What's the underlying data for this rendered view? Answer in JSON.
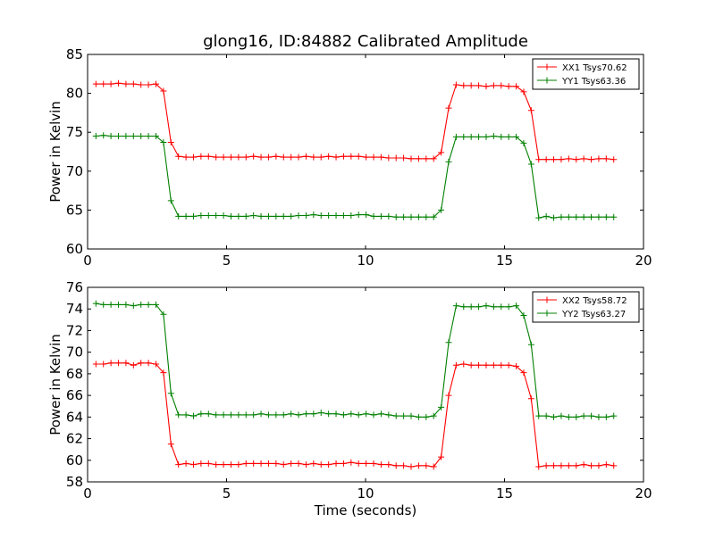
{
  "figure": {
    "title": "glong16, ID:84882 Calibrated Amplitude"
  },
  "chart_data": [
    {
      "type": "line",
      "title": "glong16, ID:84882 Calibrated Amplitude",
      "xlabel": "",
      "ylabel": "Power in Kelvin",
      "xlim": [
        0,
        20
      ],
      "ylim": [
        60,
        85
      ],
      "xticks": [
        0,
        5,
        10,
        15,
        20
      ],
      "yticks": [
        60,
        65,
        70,
        75,
        80,
        85
      ],
      "grid": false,
      "legend_position": "top-right",
      "x": [
        0.3,
        0.57,
        0.84,
        1.11,
        1.38,
        1.65,
        1.92,
        2.19,
        2.46,
        2.73,
        3.0,
        3.27,
        3.54,
        3.81,
        4.08,
        4.35,
        4.62,
        4.89,
        5.16,
        5.43,
        5.7,
        5.97,
        6.24,
        6.51,
        6.78,
        7.05,
        7.32,
        7.59,
        7.86,
        8.13,
        8.4,
        8.67,
        8.94,
        9.21,
        9.48,
        9.75,
        10.02,
        10.29,
        10.56,
        10.83,
        11.1,
        11.37,
        11.64,
        11.91,
        12.18,
        12.45,
        12.72,
        12.99,
        13.26,
        13.53,
        13.8,
        14.07,
        14.34,
        14.61,
        14.88,
        15.15,
        15.42,
        15.69,
        15.96,
        16.23,
        16.5,
        16.77,
        17.04,
        17.31,
        17.58,
        17.85,
        18.12,
        18.39,
        18.66,
        18.93
      ],
      "series": [
        {
          "name": "XX1 Tsys70.62",
          "color": "#ff0000",
          "values": [
            81.2,
            81.2,
            81.2,
            81.3,
            81.2,
            81.2,
            81.1,
            81.1,
            81.2,
            80.3,
            73.7,
            71.9,
            71.8,
            71.8,
            71.9,
            71.9,
            71.8,
            71.8,
            71.8,
            71.8,
            71.8,
            71.9,
            71.8,
            71.8,
            71.9,
            71.8,
            71.8,
            71.8,
            71.9,
            71.8,
            71.8,
            71.9,
            71.8,
            71.9,
            71.9,
            71.9,
            71.8,
            71.8,
            71.8,
            71.7,
            71.7,
            71.7,
            71.6,
            71.6,
            71.6,
            71.6,
            72.4,
            78.1,
            81.1,
            81.0,
            81.0,
            81.0,
            80.9,
            81.0,
            81.0,
            80.9,
            80.9,
            80.2,
            77.8,
            71.5,
            71.5,
            71.5,
            71.5,
            71.6,
            71.5,
            71.6,
            71.5,
            71.6,
            71.6,
            71.5
          ]
        },
        {
          "name": "YY1 Tsys63.36",
          "color": "#008000",
          "values": [
            74.5,
            74.6,
            74.5,
            74.5,
            74.5,
            74.5,
            74.5,
            74.5,
            74.5,
            73.7,
            66.2,
            64.2,
            64.2,
            64.2,
            64.3,
            64.3,
            64.3,
            64.3,
            64.2,
            64.2,
            64.2,
            64.3,
            64.2,
            64.2,
            64.2,
            64.2,
            64.2,
            64.3,
            64.3,
            64.4,
            64.3,
            64.3,
            64.3,
            64.3,
            64.3,
            64.4,
            64.4,
            64.2,
            64.2,
            64.2,
            64.1,
            64.1,
            64.1,
            64.1,
            64.1,
            64.1,
            65.0,
            71.2,
            74.4,
            74.4,
            74.4,
            74.4,
            74.4,
            74.5,
            74.4,
            74.4,
            74.4,
            73.6,
            70.9,
            64.0,
            64.2,
            64.0,
            64.1,
            64.1,
            64.1,
            64.1,
            64.1,
            64.1,
            64.1,
            64.1
          ]
        }
      ]
    },
    {
      "type": "line",
      "title": "",
      "xlabel": "Time (seconds)",
      "ylabel": "Power in Kelvin",
      "xlim": [
        0,
        20
      ],
      "ylim": [
        58,
        76
      ],
      "xticks": [
        0,
        5,
        10,
        15,
        20
      ],
      "yticks": [
        58,
        60,
        62,
        64,
        66,
        68,
        70,
        72,
        74,
        76
      ],
      "grid": false,
      "legend_position": "top-right",
      "x": [
        0.3,
        0.57,
        0.84,
        1.11,
        1.38,
        1.65,
        1.92,
        2.19,
        2.46,
        2.73,
        3.0,
        3.27,
        3.54,
        3.81,
        4.08,
        4.35,
        4.62,
        4.89,
        5.16,
        5.43,
        5.7,
        5.97,
        6.24,
        6.51,
        6.78,
        7.05,
        7.32,
        7.59,
        7.86,
        8.13,
        8.4,
        8.67,
        8.94,
        9.21,
        9.48,
        9.75,
        10.02,
        10.29,
        10.56,
        10.83,
        11.1,
        11.37,
        11.64,
        11.91,
        12.18,
        12.45,
        12.72,
        12.99,
        13.26,
        13.53,
        13.8,
        14.07,
        14.34,
        14.61,
        14.88,
        15.15,
        15.42,
        15.69,
        15.96,
        16.23,
        16.5,
        16.77,
        17.04,
        17.31,
        17.58,
        17.85,
        18.12,
        18.39,
        18.66,
        18.93
      ],
      "series": [
        {
          "name": "XX2 Tsys58.72",
          "color": "#ff0000",
          "values": [
            68.9,
            68.9,
            69.0,
            69.0,
            69.0,
            68.8,
            69.0,
            69.0,
            68.9,
            68.1,
            61.5,
            59.6,
            59.7,
            59.6,
            59.7,
            59.7,
            59.6,
            59.6,
            59.6,
            59.6,
            59.7,
            59.7,
            59.7,
            59.7,
            59.7,
            59.6,
            59.7,
            59.7,
            59.6,
            59.7,
            59.6,
            59.6,
            59.7,
            59.7,
            59.8,
            59.7,
            59.7,
            59.7,
            59.6,
            59.6,
            59.5,
            59.5,
            59.4,
            59.5,
            59.5,
            59.4,
            60.3,
            66.0,
            68.8,
            68.9,
            68.8,
            68.8,
            68.8,
            68.8,
            68.8,
            68.8,
            68.7,
            68.1,
            65.7,
            59.4,
            59.5,
            59.5,
            59.5,
            59.5,
            59.5,
            59.6,
            59.5,
            59.5,
            59.6,
            59.5
          ]
        },
        {
          "name": "YY2 Tsys63.27",
          "color": "#008000",
          "values": [
            74.5,
            74.4,
            74.4,
            74.4,
            74.4,
            74.3,
            74.4,
            74.4,
            74.4,
            73.5,
            66.2,
            64.2,
            64.2,
            64.1,
            64.3,
            64.3,
            64.2,
            64.2,
            64.2,
            64.2,
            64.2,
            64.2,
            64.3,
            64.2,
            64.2,
            64.2,
            64.3,
            64.2,
            64.3,
            64.3,
            64.4,
            64.3,
            64.3,
            64.2,
            64.3,
            64.2,
            64.3,
            64.2,
            64.3,
            64.2,
            64.1,
            64.1,
            64.1,
            64.0,
            64.0,
            64.1,
            64.9,
            70.9,
            74.3,
            74.2,
            74.2,
            74.2,
            74.3,
            74.2,
            74.2,
            74.2,
            74.3,
            73.4,
            70.7,
            64.1,
            64.1,
            64.0,
            64.1,
            64.0,
            64.0,
            64.1,
            64.1,
            64.0,
            64.0,
            64.1
          ]
        }
      ]
    }
  ]
}
